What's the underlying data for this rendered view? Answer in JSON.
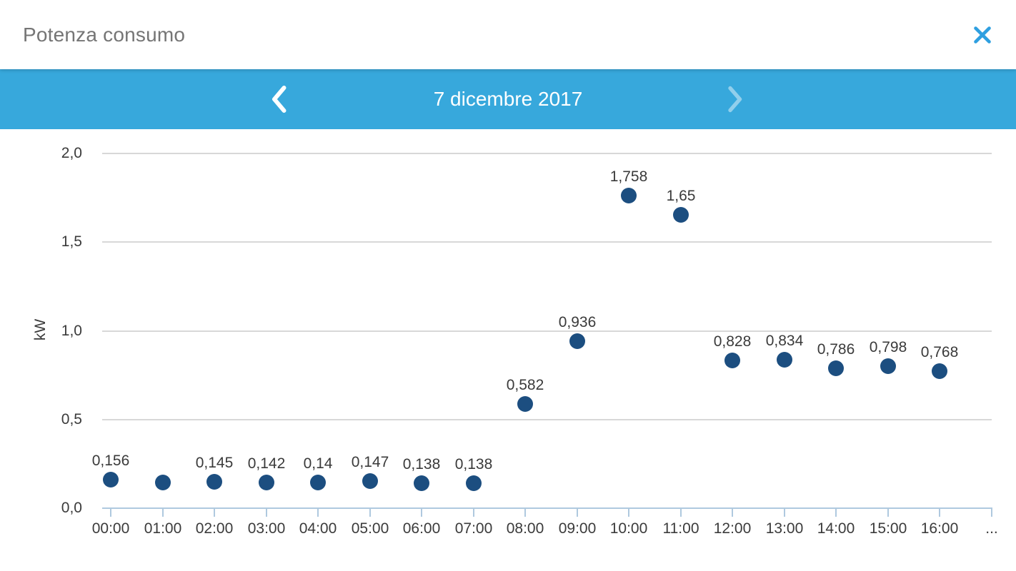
{
  "header": {
    "title": "Potenza consumo",
    "close_icon": "close-x-icon"
  },
  "date_nav": {
    "date": "7 dicembre 2017",
    "prev_icon": "chevron-left-icon",
    "next_icon": "chevron-right-icon",
    "next_disabled": true
  },
  "chart_data": {
    "type": "scatter",
    "title": "Potenza consumo",
    "xlabel": "",
    "ylabel": "kW",
    "ylim": [
      0,
      2.07
    ],
    "grid": true,
    "legend": "none",
    "y_ticks": [
      {
        "value": 2.0,
        "label": "2,0"
      },
      {
        "value": 1.5,
        "label": "1,5"
      },
      {
        "value": 1.0,
        "label": "1,0"
      },
      {
        "value": 0.5,
        "label": "0,5"
      },
      {
        "value": 0.0,
        "label": "0,0"
      }
    ],
    "x_overflow_label": "...",
    "points": [
      {
        "time": "00:00",
        "value": 0.156,
        "label": "0,156"
      },
      {
        "time": "01:00",
        "value": 0.14,
        "label": ""
      },
      {
        "time": "02:00",
        "value": 0.145,
        "label": "0,145"
      },
      {
        "time": "03:00",
        "value": 0.142,
        "label": "0,142"
      },
      {
        "time": "04:00",
        "value": 0.14,
        "label": "0,14"
      },
      {
        "time": "05:00",
        "value": 0.147,
        "label": "0,147"
      },
      {
        "time": "06:00",
        "value": 0.138,
        "label": "0,138"
      },
      {
        "time": "07:00",
        "value": 0.138,
        "label": "0,138"
      },
      {
        "time": "08:00",
        "value": 0.582,
        "label": "0,582"
      },
      {
        "time": "09:00",
        "value": 0.936,
        "label": "0,936"
      },
      {
        "time": "10:00",
        "value": 1.758,
        "label": "1,758"
      },
      {
        "time": "11:00",
        "value": 1.65,
        "label": "1,65"
      },
      {
        "time": "12:00",
        "value": 0.828,
        "label": "0,828"
      },
      {
        "time": "13:00",
        "value": 0.834,
        "label": "0,834"
      },
      {
        "time": "14:00",
        "value": 0.786,
        "label": "0,786"
      },
      {
        "time": "15:00",
        "value": 0.798,
        "label": "0,798"
      },
      {
        "time": "16:00",
        "value": 0.768,
        "label": "0,768"
      }
    ],
    "colors": {
      "point": "#1C4E80",
      "grid": "#D8D8D8",
      "axis": "#AFC9DF",
      "bar_blue": "#37A8DC",
      "close_blue": "#2E9FE0",
      "title_gray": "#757575",
      "label_text": "#3A3A3A"
    }
  }
}
